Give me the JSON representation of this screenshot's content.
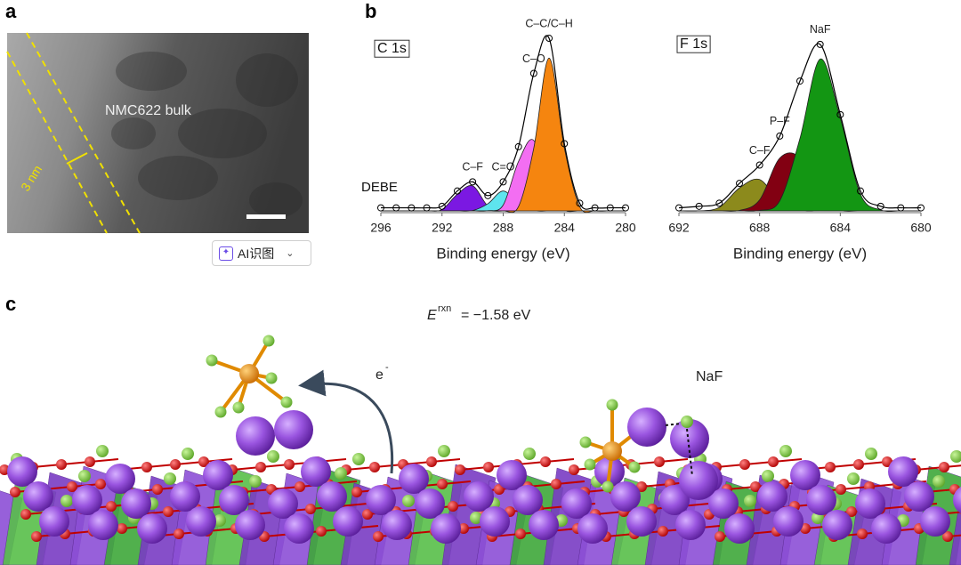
{
  "panel_labels": [
    "a",
    "b",
    "c"
  ],
  "panel_a": {
    "region_label": "NMC622 bulk",
    "thickness_label": "3 nm"
  },
  "toolbar": {
    "button": "AI识图"
  },
  "chart_data": [
    {
      "type": "area",
      "title": "C 1s",
      "annotation": "DEBE",
      "xlabel": "Binding energy (eV)",
      "x": [
        296,
        295,
        294,
        293,
        292,
        291,
        290,
        289,
        288,
        287,
        286,
        285,
        284,
        283,
        282,
        281,
        280
      ],
      "xlim": [
        296,
        280
      ],
      "xticks": [
        296,
        292,
        288,
        284,
        280
      ],
      "ylim": [
        0,
        120
      ],
      "series": [
        {
          "name": "C–F",
          "color": "#7b18e2",
          "values": [
            0,
            0,
            0,
            0,
            0.9,
            10.9,
            16.4,
            3.2,
            0.1,
            0,
            0,
            0,
            0,
            0,
            0,
            0,
            0
          ]
        },
        {
          "name": "C=O",
          "color": "#5ee4ee",
          "values": [
            0,
            0,
            0,
            0,
            0,
            0,
            0.2,
            4.7,
            13,
            4.7,
            0.2,
            0,
            0,
            0,
            0,
            0,
            0
          ]
        },
        {
          "name": "C–O",
          "color": "#f36ef2",
          "values": [
            0,
            0,
            0,
            0,
            0,
            0,
            0,
            0.1,
            3.8,
            32.3,
            46.1,
            11.2,
            0.5,
            0,
            0,
            0,
            0
          ]
        },
        {
          "name": "C–C/C–H",
          "color": "#f5850f",
          "values": [
            0,
            0,
            0,
            0,
            0,
            0,
            0,
            0,
            0,
            2.8,
            41.1,
            100,
            41.1,
            2.8,
            0,
            0,
            0
          ]
        },
        {
          "color": "#000000",
          "marker": "circle",
          "values": [
            2,
            2,
            2,
            2,
            3,
            13,
            19,
            10,
            19,
            42,
            90,
            113,
            44,
            5,
            2,
            2,
            2
          ]
        }
      ]
    },
    {
      "type": "area",
      "title": "F 1s",
      "xlabel": "Binding energy (eV)",
      "x": [
        692,
        691,
        690,
        689,
        688,
        687,
        686,
        685,
        684,
        683,
        682,
        681,
        680
      ],
      "xlim": [
        692,
        680
      ],
      "xticks": [
        692,
        688,
        684,
        680
      ],
      "ylim": [
        0,
        120
      ],
      "series": [
        {
          "name": "C–F",
          "color": "#8c8a1c",
          "values": [
            0,
            0,
            2.3,
            15,
            20.5,
            5.9,
            0.4,
            0,
            0,
            0,
            0,
            0,
            0
          ]
        },
        {
          "name": "P–F",
          "color": "#820012",
          "values": [
            0,
            0,
            0,
            0.3,
            7.2,
            34.6,
            34.6,
            7.2,
            0.3,
            0,
            0,
            0,
            0
          ]
        },
        {
          "name": "NaF",
          "color": "#139613",
          "values": [
            0,
            0,
            0,
            0,
            0.3,
            6.6,
            47.4,
            99.4,
            60.7,
            10.8,
            0.6,
            0,
            0
          ]
        },
        {
          "color": "#000000",
          "marker": "circle",
          "values": [
            2,
            3,
            5,
            18,
            30,
            49,
            85,
            109,
            63,
            13,
            3,
            2,
            2
          ]
        }
      ]
    }
  ],
  "panel_c": {
    "energy_symbol": "E",
    "energy_superscript": "rxn",
    "energy_value": "= −1.58 eV",
    "electron_symbol": "e",
    "electron_charge": "-",
    "product_label": "NaF"
  }
}
